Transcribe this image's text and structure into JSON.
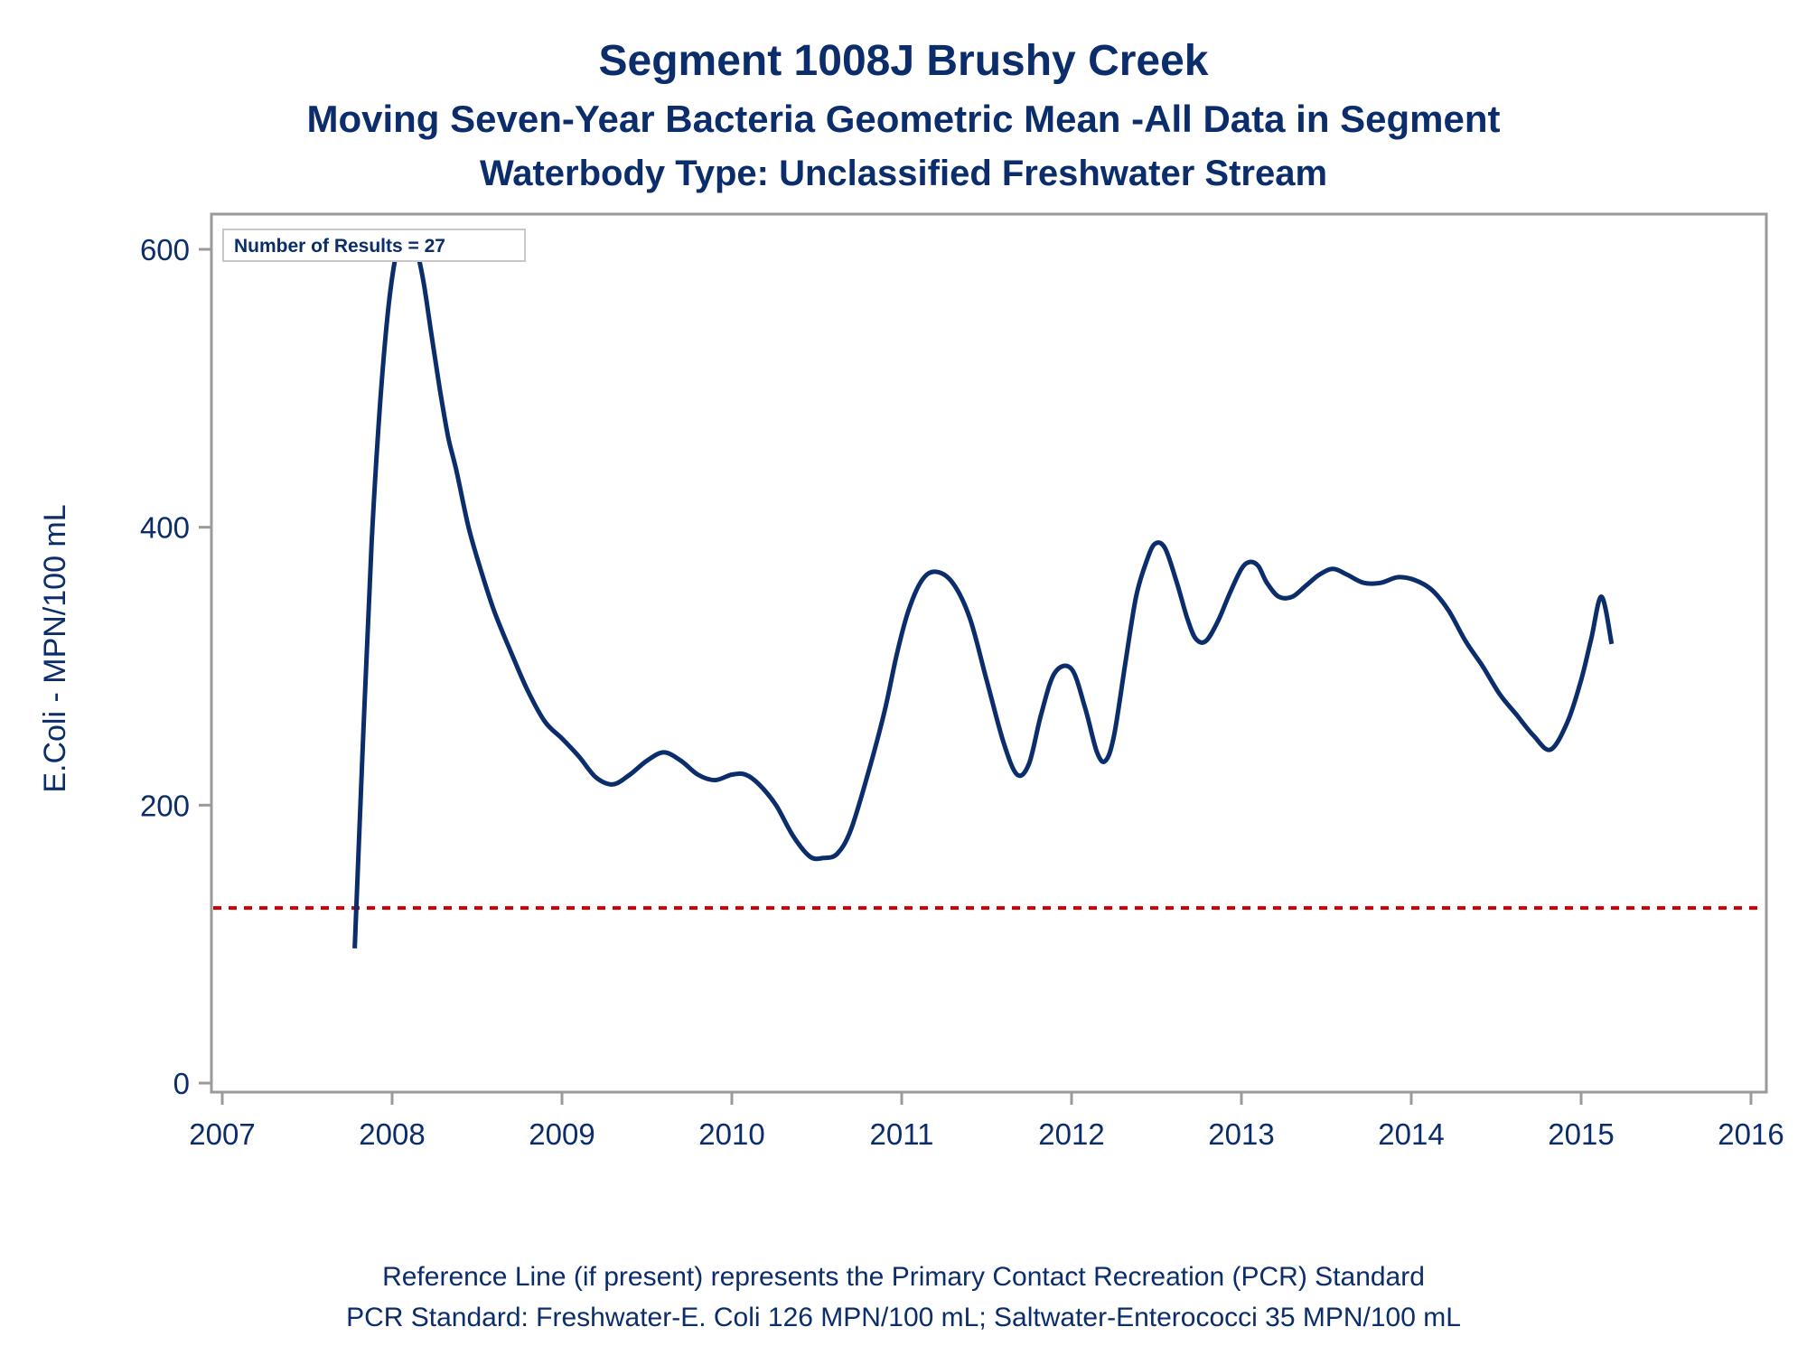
{
  "colors": {
    "text": "#0b2d6b",
    "series_line": "#0b2d6b",
    "reference_line": "#cc0000",
    "frame": "#9a9a9a",
    "background": "#ffffff"
  },
  "titles": {
    "line1": "Segment 1008J   Brushy Creek",
    "line2": "Moving Seven-Year Bacteria Geometric Mean -All Data in Segment",
    "line3": "Waterbody Type: Unclassified Freshwater Stream"
  },
  "footnotes": {
    "line1": "Reference Line (if present) represents the Primary Contact Recreation (PCR) Standard",
    "line2": "PCR Standard: Freshwater-E. Coli 126 MPN/100 mL; Saltwater-Enterococci 35 MPN/100 mL"
  },
  "inset": {
    "label": "Number of Results = 27"
  },
  "chart_data": {
    "type": "line",
    "ylabel": "E.Coli - MPN/100 mL",
    "xlabel": "",
    "xlim": [
      2007,
      2016
    ],
    "ylim": [
      0,
      625
    ],
    "xticks": [
      2007,
      2008,
      2009,
      2010,
      2011,
      2012,
      2013,
      2014,
      2015,
      2016
    ],
    "yticks": [
      0,
      200,
      400,
      600
    ],
    "x_tick_labels": [
      "2007",
      "2008",
      "2009",
      "2010",
      "2011",
      "2012",
      "2013",
      "2014",
      "2015",
      "2016"
    ],
    "y_tick_labels": [
      "0",
      "200",
      "400",
      "600"
    ],
    "grid": false,
    "reference_line": {
      "y": 126,
      "style": "dotted"
    },
    "series": [
      {
        "x": [
          2007.78,
          2007.83,
          2007.88,
          2007.93,
          2007.98,
          2008.03,
          2008.08,
          2008.13,
          2008.18,
          2008.23,
          2008.28,
          2008.33,
          2008.38,
          2008.45,
          2008.52,
          2008.6,
          2008.7,
          2008.8,
          2008.9,
          2009.0,
          2009.1,
          2009.2,
          2009.3,
          2009.4,
          2009.5,
          2009.6,
          2009.7,
          2009.8,
          2009.9,
          2010.0,
          2010.08,
          2010.16,
          2010.26,
          2010.36,
          2010.46,
          2010.54,
          2010.62,
          2010.7,
          2010.8,
          2010.9,
          2010.97,
          2011.04,
          2011.12,
          2011.2,
          2011.3,
          2011.4,
          2011.5,
          2011.6,
          2011.68,
          2011.75,
          2011.82,
          2011.9,
          2012.0,
          2012.08,
          2012.15,
          2012.2,
          2012.25,
          2012.32,
          2012.38,
          2012.44,
          2012.49,
          2012.55,
          2012.62,
          2012.68,
          2012.73,
          2012.79,
          2012.86,
          2012.93,
          2013.0,
          2013.05,
          2013.1,
          2013.15,
          2013.22,
          2013.3,
          2013.38,
          2013.46,
          2013.54,
          2013.62,
          2013.72,
          2013.82,
          2013.92,
          2014.02,
          2014.12,
          2014.22,
          2014.32,
          2014.42,
          2014.52,
          2014.62,
          2014.72,
          2014.82,
          2014.92,
          2015.0,
          2015.06,
          2015.12,
          2015.18
        ],
        "y": [
          97,
          250,
          390,
          490,
          560,
          600,
          612,
          605,
          580,
          540,
          500,
          465,
          440,
          400,
          370,
          340,
          310,
          282,
          260,
          248,
          235,
          220,
          215,
          222,
          232,
          238,
          232,
          222,
          218,
          222,
          222,
          215,
          200,
          178,
          163,
          162,
          165,
          182,
          222,
          268,
          308,
          340,
          362,
          368,
          360,
          335,
          290,
          245,
          222,
          230,
          265,
          295,
          298,
          270,
          238,
          232,
          250,
          305,
          350,
          375,
          388,
          385,
          360,
          335,
          320,
          318,
          332,
          352,
          370,
          375,
          372,
          360,
          350,
          350,
          358,
          366,
          370,
          366,
          360,
          360,
          364,
          362,
          355,
          340,
          318,
          300,
          280,
          265,
          250,
          240,
          260,
          290,
          320,
          350,
          316
        ]
      }
    ]
  }
}
